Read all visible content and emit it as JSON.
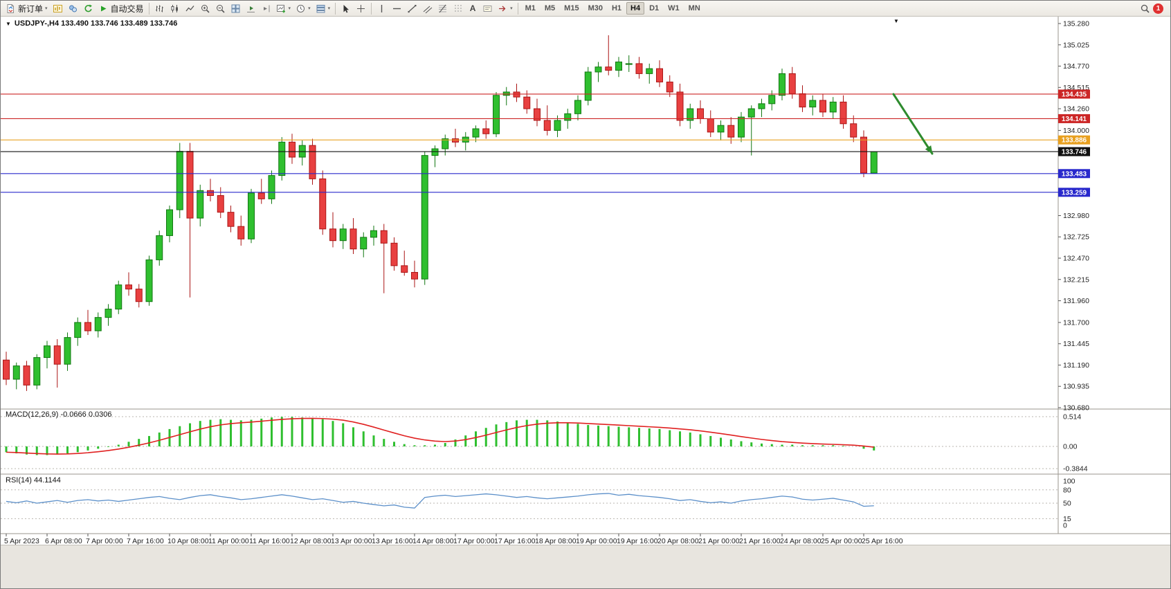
{
  "icons": {
    "caret": "▾",
    "collapse": "▼",
    "shift_marker": "▼"
  },
  "toolbar": {
    "new_order_label": "新订单",
    "autotrading_label": "自动交易",
    "text_tool_label": "A",
    "timeframes": [
      "M1",
      "M5",
      "M15",
      "M30",
      "H1",
      "H4",
      "D1",
      "W1",
      "MN"
    ],
    "active_timeframe": "H4",
    "notification_count": "1"
  },
  "chart": {
    "title": "USDJPY-,H4 133.490 133.746 133.489 133.746",
    "macd_label": "MACD(12,26,9) -0.0666 0.0306",
    "rsi_label": "RSI(14) 44.1144"
  },
  "chart_data": {
    "type": "candlestick",
    "symbol": "USDJPY-",
    "timeframe": "H4",
    "last_ohlc": {
      "open": 133.49,
      "high": 133.746,
      "low": 133.489,
      "close": 133.746
    },
    "colors": {
      "up": "#2fbf2f",
      "up_border": "#117711",
      "down": "#e84040",
      "down_border": "#aa1515",
      "macd_histogram": "#2fbf2f",
      "macd_signal": "#e02020",
      "rsi_line": "#5b8fc9",
      "annotation_arrow": "#2e8b2e",
      "level_red": "#cc2626",
      "level_orange": "#e8a020",
      "level_blue": "#2828cc",
      "level_black": "#111111"
    },
    "price_scale": [
      "135.280",
      "135.025",
      "134.770",
      "134.515",
      "134.260",
      "134.000",
      "133.745",
      "133.490",
      "133.235",
      "132.980",
      "132.725",
      "132.470",
      "132.215",
      "131.960",
      "131.700",
      "131.445",
      "131.190",
      "130.935",
      "130.680"
    ],
    "levels": [
      {
        "value": 134.435,
        "label": "134.435",
        "color": "#cc2626",
        "type": "resistance-line"
      },
      {
        "value": 134.141,
        "label": "134.141",
        "color": "#cc2626",
        "type": "resistance-line"
      },
      {
        "value": 133.886,
        "label": "133.886",
        "color": "#e8a020",
        "type": "pivot-line"
      },
      {
        "value": 133.746,
        "label": "133.746",
        "color": "#111111",
        "type": "current-price-line"
      },
      {
        "value": 133.483,
        "label": "133.483",
        "color": "#2828cc",
        "type": "support-line"
      },
      {
        "value": 133.259,
        "label": "133.259",
        "color": "#2828cc",
        "type": "support-line"
      }
    ],
    "ohlc": [
      [
        131.25,
        131.35,
        130.95,
        131.02
      ],
      [
        131.02,
        131.22,
        130.9,
        131.18
      ],
      [
        131.18,
        131.24,
        130.88,
        130.95
      ],
      [
        130.95,
        131.32,
        130.9,
        131.28
      ],
      [
        131.28,
        131.48,
        131.15,
        131.42
      ],
      [
        131.42,
        131.5,
        130.92,
        131.2
      ],
      [
        131.2,
        131.58,
        131.12,
        131.52
      ],
      [
        131.52,
        131.76,
        131.42,
        131.7
      ],
      [
        131.7,
        131.85,
        131.55,
        131.6
      ],
      [
        131.6,
        131.82,
        131.52,
        131.76
      ],
      [
        131.76,
        131.92,
        131.66,
        131.86
      ],
      [
        131.86,
        132.2,
        131.8,
        132.15
      ],
      [
        132.15,
        132.3,
        132.02,
        132.1
      ],
      [
        132.1,
        132.16,
        131.88,
        131.95
      ],
      [
        131.95,
        132.5,
        131.9,
        132.45
      ],
      [
        132.45,
        132.8,
        132.38,
        132.74
      ],
      [
        132.74,
        133.1,
        132.66,
        133.05
      ],
      [
        133.05,
        133.85,
        132.95,
        133.75
      ],
      [
        133.75,
        133.85,
        132.0,
        132.95
      ],
      [
        132.95,
        133.35,
        132.85,
        133.28
      ],
      [
        133.28,
        133.42,
        133.15,
        133.22
      ],
      [
        133.22,
        133.32,
        132.95,
        133.02
      ],
      [
        133.02,
        133.1,
        132.78,
        132.85
      ],
      [
        132.85,
        132.98,
        132.62,
        132.7
      ],
      [
        132.7,
        133.3,
        132.65,
        133.25
      ],
      [
        133.25,
        133.42,
        133.12,
        133.18
      ],
      [
        133.18,
        133.52,
        133.12,
        133.46
      ],
      [
        133.46,
        133.92,
        133.4,
        133.86
      ],
      [
        133.86,
        133.96,
        133.6,
        133.68
      ],
      [
        133.68,
        133.88,
        133.58,
        133.82
      ],
      [
        133.82,
        133.9,
        133.35,
        133.42
      ],
      [
        133.42,
        133.52,
        132.75,
        132.82
      ],
      [
        132.82,
        133.02,
        132.6,
        132.68
      ],
      [
        132.68,
        132.88,
        132.58,
        132.82
      ],
      [
        132.82,
        132.95,
        132.52,
        132.58
      ],
      [
        132.58,
        132.78,
        132.48,
        132.72
      ],
      [
        132.72,
        132.86,
        132.62,
        132.8
      ],
      [
        132.8,
        132.88,
        132.05,
        132.65
      ],
      [
        132.65,
        132.72,
        132.32,
        132.38
      ],
      [
        132.38,
        132.56,
        132.26,
        132.3
      ],
      [
        132.3,
        132.44,
        132.12,
        132.22
      ],
      [
        132.22,
        133.75,
        132.15,
        133.7
      ],
      [
        133.7,
        133.82,
        133.56,
        133.78
      ],
      [
        133.78,
        133.95,
        133.7,
        133.9
      ],
      [
        133.9,
        134.02,
        133.8,
        133.86
      ],
      [
        133.86,
        133.98,
        133.76,
        133.92
      ],
      [
        133.92,
        134.06,
        133.86,
        134.02
      ],
      [
        134.02,
        134.12,
        133.9,
        133.96
      ],
      [
        133.96,
        134.46,
        133.92,
        134.42
      ],
      [
        134.42,
        134.52,
        134.3,
        134.46
      ],
      [
        134.46,
        134.56,
        134.34,
        134.4
      ],
      [
        134.4,
        134.48,
        134.2,
        134.26
      ],
      [
        134.26,
        134.38,
        134.05,
        134.12
      ],
      [
        134.12,
        134.3,
        133.94,
        134.0
      ],
      [
        134.0,
        134.18,
        133.92,
        134.12
      ],
      [
        134.12,
        134.26,
        134.02,
        134.2
      ],
      [
        134.2,
        134.42,
        134.12,
        134.36
      ],
      [
        134.36,
        134.76,
        134.3,
        134.7
      ],
      [
        134.7,
        134.82,
        134.58,
        134.76
      ],
      [
        134.76,
        135.14,
        134.66,
        134.72
      ],
      [
        134.72,
        134.88,
        134.64,
        134.82
      ],
      [
        134.8,
        134.9,
        134.7,
        134.8
      ],
      [
        134.8,
        134.88,
        134.62,
        134.68
      ],
      [
        134.68,
        134.8,
        134.56,
        134.74
      ],
      [
        134.74,
        134.84,
        134.52,
        134.58
      ],
      [
        134.58,
        134.66,
        134.4,
        134.46
      ],
      [
        134.46,
        134.56,
        134.05,
        134.12
      ],
      [
        134.12,
        134.32,
        134.02,
        134.26
      ],
      [
        134.26,
        134.36,
        134.08,
        134.14
      ],
      [
        134.14,
        134.24,
        133.92,
        133.98
      ],
      [
        133.98,
        134.12,
        133.88,
        134.06
      ],
      [
        134.06,
        134.16,
        133.84,
        133.92
      ],
      [
        133.92,
        134.22,
        133.86,
        134.16
      ],
      [
        134.16,
        134.3,
        133.7,
        134.26
      ],
      [
        134.26,
        134.38,
        134.16,
        134.32
      ],
      [
        134.32,
        134.48,
        134.24,
        134.42
      ],
      [
        134.42,
        134.74,
        134.36,
        134.68
      ],
      [
        134.68,
        134.76,
        134.38,
        134.44
      ],
      [
        134.44,
        134.54,
        134.22,
        134.28
      ],
      [
        134.28,
        134.42,
        134.18,
        134.36
      ],
      [
        134.36,
        134.44,
        134.16,
        134.22
      ],
      [
        134.22,
        134.4,
        134.14,
        134.34
      ],
      [
        134.34,
        134.42,
        134.02,
        134.08
      ],
      [
        134.08,
        134.18,
        133.86,
        133.92
      ],
      [
        133.92,
        134.0,
        133.44,
        133.49
      ],
      [
        133.49,
        133.746,
        133.489,
        133.746
      ]
    ],
    "time_labels": [
      "5 Apr 2023",
      "6 Apr 08:00",
      "7 Apr 00:00",
      "7 Apr 16:00",
      "10 Apr 08:00",
      "11 Apr 00:00",
      "11 Apr 16:00",
      "12 Apr 08:00",
      "13 Apr 00:00",
      "13 Apr 16:00",
      "14 Apr 08:00",
      "17 Apr 00:00",
      "17 Apr 16:00",
      "18 Apr 08:00",
      "19 Apr 00:00",
      "19 Apr 16:00",
      "20 Apr 08:00",
      "21 Apr 00:00",
      "21 Apr 16:00",
      "24 Apr 08:00",
      "25 Apr 00:00",
      "25 Apr 16:00"
    ],
    "macd": {
      "label": "MACD(12,26,9)",
      "main_value": -0.0666,
      "signal_value": 0.0306,
      "histogram": [
        -0.1,
        -0.12,
        -0.14,
        -0.15,
        -0.15,
        -0.14,
        -0.12,
        -0.1,
        -0.07,
        -0.04,
        -0.01,
        0.03,
        0.08,
        0.13,
        0.18,
        0.24,
        0.3,
        0.35,
        0.4,
        0.44,
        0.46,
        0.47,
        0.46,
        0.45,
        0.46,
        0.48,
        0.5,
        0.51,
        0.51,
        0.5,
        0.49,
        0.47,
        0.44,
        0.4,
        0.33,
        0.26,
        0.19,
        0.13,
        0.08,
        0.04,
        0.02,
        0.02,
        0.03,
        0.06,
        0.12,
        0.19,
        0.26,
        0.32,
        0.38,
        0.42,
        0.45,
        0.46,
        0.46,
        0.45,
        0.43,
        0.41,
        0.39,
        0.37,
        0.36,
        0.35,
        0.34,
        0.33,
        0.32,
        0.31,
        0.3,
        0.28,
        0.26,
        0.24,
        0.21,
        0.18,
        0.15,
        0.12,
        0.09,
        0.07,
        0.05,
        0.04,
        0.03,
        0.03,
        0.02,
        0.02,
        0.02,
        0.02,
        0.01,
        0.0,
        -0.04,
        -0.07
      ],
      "scale_labels": [
        "0.514",
        "0.00",
        "-0.3844"
      ],
      "scale_values": [
        0.514,
        0,
        -0.3844
      ]
    },
    "rsi": {
      "label": "RSI(14)",
      "value": 44.1144,
      "values": [
        54,
        51,
        55,
        50,
        53,
        56,
        52,
        56,
        58,
        55,
        57,
        54,
        57,
        60,
        63,
        65,
        61,
        58,
        63,
        67,
        69,
        65,
        62,
        58,
        60,
        63,
        66,
        69,
        66,
        62,
        58,
        60,
        56,
        52,
        54,
        50,
        47,
        44,
        46,
        41,
        39,
        63,
        66,
        68,
        65,
        67,
        69,
        71,
        69,
        66,
        63,
        65,
        62,
        60,
        62,
        64,
        66,
        69,
        71,
        72,
        68,
        70,
        67,
        65,
        63,
        60,
        56,
        58,
        54,
        51,
        53,
        50,
        55,
        58,
        60,
        63,
        66,
        64,
        59,
        57,
        59,
        61,
        57,
        53,
        43,
        44.1
      ],
      "levels": [
        80,
        50,
        15
      ],
      "scale_labels": [
        "100",
        "80",
        "50",
        "15",
        "0"
      ],
      "scale_values": [
        100,
        80,
        50,
        15,
        0
      ]
    }
  }
}
